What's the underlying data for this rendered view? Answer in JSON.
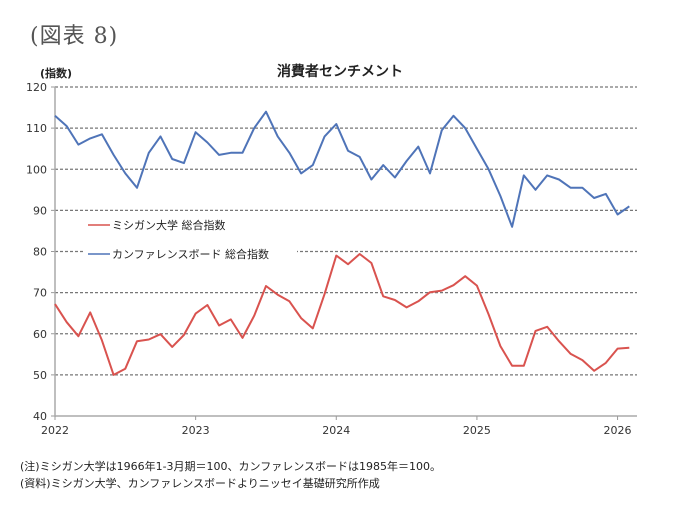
{
  "figure_label": "(図表 8)",
  "notes": [
    "(注)ミシガン大学は1966年1-3月期＝100、カンファレンスボードは1985年＝100。",
    "(資料)ミシガン大学、カンファレンスボードよりニッセイ基礎研究所作成"
  ],
  "chart_data": {
    "type": "line",
    "title": "消費者センチメント",
    "ylabel": "(指数)",
    "xlabel": "",
    "ylim": [
      40,
      120
    ],
    "yticks": [
      40,
      50,
      60,
      70,
      80,
      90,
      100,
      110,
      120
    ],
    "xticks": [
      "2022",
      "2023",
      "2024",
      "2025",
      "2026"
    ],
    "x_start": "2022-01",
    "x_frequency": "monthly",
    "grid": true,
    "legend_position": "middle-left",
    "series": [
      {
        "name": "ミシガン大学 総合指数",
        "color": "#d9534f",
        "values": [
          67.2,
          62.8,
          59.4,
          65.2,
          58.4,
          50.0,
          51.5,
          58.2,
          58.6,
          59.9,
          56.8,
          59.7,
          64.9,
          67.0,
          62.0,
          63.5,
          59.0,
          64.4,
          71.6,
          69.5,
          67.9,
          63.8,
          61.3,
          69.7,
          79.0,
          76.9,
          79.4,
          77.2,
          69.1,
          68.2,
          66.4,
          67.9,
          70.1,
          70.5,
          71.8,
          74.0,
          71.7,
          64.7,
          57.0,
          52.2,
          52.2,
          60.7,
          61.7,
          58.2,
          55.1,
          53.6,
          51.0,
          52.9,
          56.4,
          56.6
        ]
      },
      {
        "name": "カンファレンスボード 総合指数",
        "color": "#4f74b8",
        "values": [
          113.0,
          110.5,
          106.0,
          107.5,
          108.5,
          103.5,
          99.0,
          95.5,
          104.0,
          108.0,
          102.5,
          101.5,
          109.0,
          106.5,
          103.5,
          104.0,
          104.0,
          110.0,
          114.0,
          108.0,
          104.0,
          99.0,
          101.0,
          108.0,
          111.0,
          104.5,
          103.0,
          97.5,
          101.0,
          98.0,
          102.0,
          105.5,
          99.0,
          109.5,
          113.0,
          110.0,
          105.0,
          100.0,
          93.5,
          86.0,
          98.5,
          95.0,
          98.5,
          97.5,
          95.5,
          95.5,
          93.0,
          94.0,
          89.0,
          91.0
        ]
      }
    ]
  }
}
